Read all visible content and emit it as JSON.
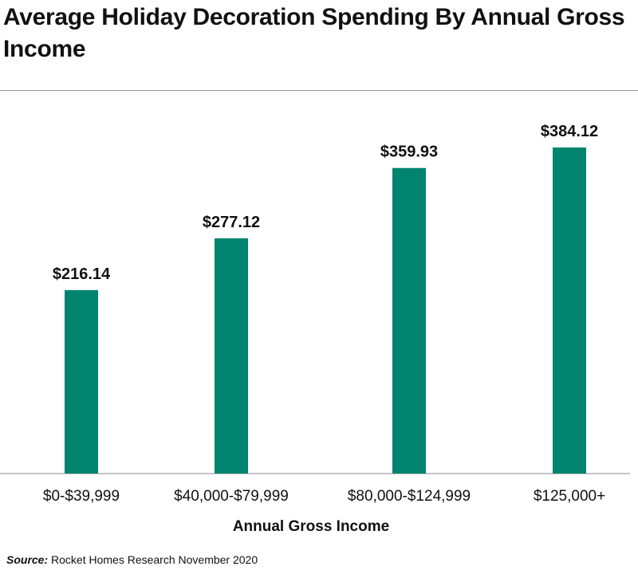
{
  "chart_data": {
    "type": "bar",
    "title": "Average Holiday Decoration Spending By Annual Gross Income",
    "xlabel": "Annual Gross Income",
    "ylabel": "",
    "categories": [
      "$0-$39,999",
      "$40,000-$79,999",
      "$80,000-$124,999",
      "$125,000+"
    ],
    "values": [
      216.14,
      277.12,
      359.93,
      384.12
    ],
    "value_labels": [
      "$216.14",
      "$277.12",
      "$359.93",
      "$384.12"
    ],
    "ylim": [
      0,
      432
    ],
    "grid": false,
    "bar_color": "#008470"
  },
  "source": {
    "label": "Source:",
    "text": "Rocket Homes Research November 2020"
  }
}
